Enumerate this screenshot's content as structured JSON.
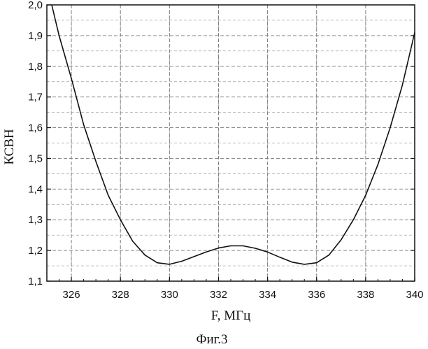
{
  "chart_data": {
    "type": "line",
    "title": "",
    "xlabel": "F, МГц",
    "ylabel": "КСВН",
    "caption": "Фиг.3",
    "xlim": [
      325,
      340
    ],
    "ylim": [
      1.1,
      2.0
    ],
    "grid": true,
    "x_major_ticks": [
      326,
      328,
      330,
      332,
      334,
      336,
      338,
      340
    ],
    "x_tick_labels": [
      "326",
      "328",
      "330",
      "332",
      "334",
      "336",
      "338",
      "340"
    ],
    "y_major_ticks": [
      1.1,
      1.2,
      1.3,
      1.4,
      1.5,
      1.6,
      1.7,
      1.8,
      1.9,
      2.0
    ],
    "y_tick_labels": [
      "1,1",
      "1,2",
      "1,3",
      "1,4",
      "1,5",
      "1,6",
      "1,7",
      "1,8",
      "1,9",
      "2,0"
    ],
    "series": [
      {
        "color": "#111111",
        "x": [
          325.2,
          325.5,
          326.0,
          326.5,
          327.0,
          327.5,
          328.0,
          328.5,
          329.0,
          329.5,
          330.0,
          330.5,
          331.0,
          331.5,
          332.0,
          332.5,
          333.0,
          333.5,
          334.0,
          334.5,
          335.0,
          335.5,
          336.0,
          336.5,
          337.0,
          337.5,
          338.0,
          338.5,
          339.0,
          339.5,
          340.0
        ],
        "y": [
          2.0,
          1.9,
          1.76,
          1.61,
          1.49,
          1.38,
          1.3,
          1.23,
          1.185,
          1.16,
          1.155,
          1.165,
          1.18,
          1.195,
          1.208,
          1.215,
          1.215,
          1.207,
          1.195,
          1.178,
          1.162,
          1.155,
          1.16,
          1.185,
          1.235,
          1.3,
          1.38,
          1.48,
          1.6,
          1.74,
          1.91
        ]
      }
    ]
  }
}
